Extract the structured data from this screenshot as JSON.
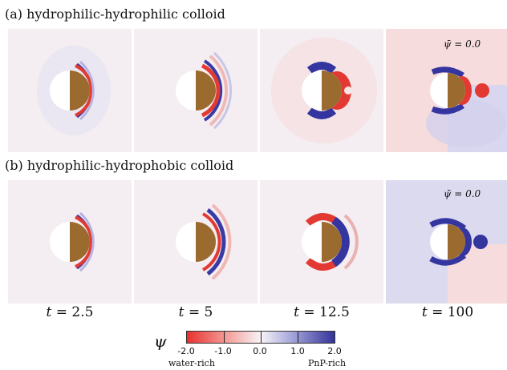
{
  "figure": {
    "row_a_title": "(a) hydrophilic-hydrophilic colloid",
    "row_b_title": "(b) hydrophilic-hydrophobic colloid",
    "psi_annotation": "ψ̄ = 0.0",
    "times": [
      {
        "var": "t",
        "text": " = 2.5"
      },
      {
        "var": "t",
        "text": " = 5"
      },
      {
        "var": "t",
        "text": " = 12.5"
      },
      {
        "var": "t",
        "text": " = 100"
      }
    ],
    "colorbar": {
      "symbol": "ψ",
      "ticks": [
        "-2.0",
        "-1.0",
        "0.0",
        "1.0",
        "2.0"
      ],
      "left_label": "water-rich",
      "right_label": "PnP-rich",
      "min": -2.0,
      "max": 2.0,
      "colors": {
        "negative": "#e8312f",
        "zero": "#f7f3f7",
        "positive": "#33339a"
      }
    },
    "colloid_colors": {
      "hydrophilic_half": "#ffffff",
      "janus_half": "#9a6a2e"
    }
  }
}
